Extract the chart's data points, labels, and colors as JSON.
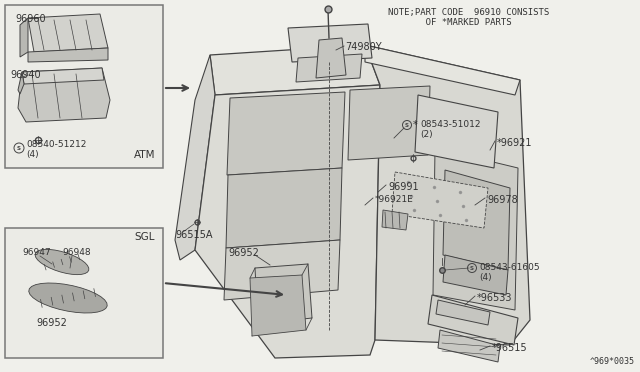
{
  "bg_color": "#f0f0eb",
  "line_color": "#444444",
  "text_color": "#333333",
  "note_line1": "NOTE;PART CODE  96910 CONSISTS",
  "note_line2": "       OF *MARKED PARTS",
  "diagram_id": "^969*0035",
  "fig_width": 6.4,
  "fig_height": 3.72,
  "dpi": 100
}
